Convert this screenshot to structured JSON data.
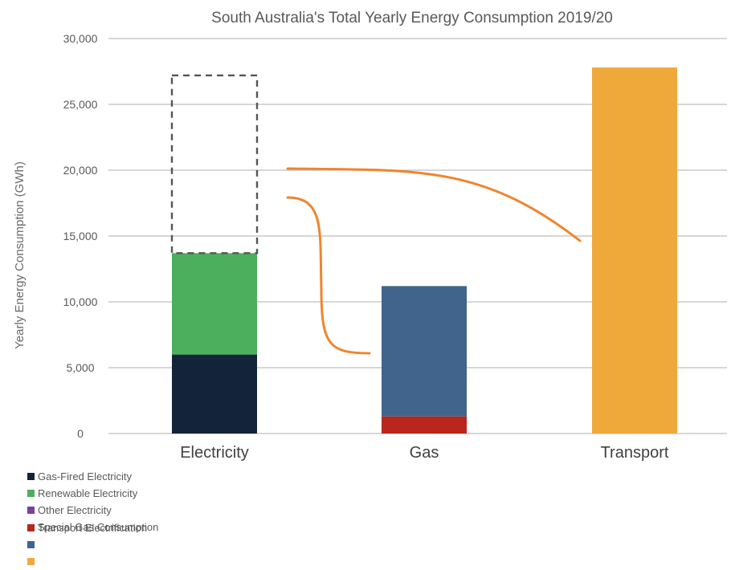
{
  "colors": {
    "gas_fired": "#13243a",
    "renewable": "#4caf5e",
    "other": "#7a3fa0",
    "special_gas": "#b8261c",
    "gas": "#41648c",
    "transport": "#efa93a",
    "annotation": "#f0852d",
    "grid": "#bfbfbf",
    "dashed": "#555555"
  },
  "chart_data": {
    "type": "bar",
    "title": "South Australia's Total Yearly Energy Consumption 2019/20",
    "ylabel": "Yearly Energy Consumption (GWh)",
    "xlabel": "",
    "ylim": [
      0,
      30000
    ],
    "yticks": [
      0,
      5000,
      10000,
      15000,
      20000,
      25000,
      30000
    ],
    "ytick_labels": [
      "0",
      "5,000",
      "10,000",
      "15,000",
      "20,000",
      "25,000",
      "30,000"
    ],
    "grid": true,
    "stacked": true,
    "categories": [
      "Electricity",
      "Gas",
      "Transport"
    ],
    "series": [
      {
        "name": "Gas-Fired Electricity",
        "color_key": "gas_fired",
        "values": [
          6000,
          0,
          0
        ]
      },
      {
        "name": "Renewable Electricity",
        "color_key": "renewable",
        "values": [
          7700,
          0,
          0
        ]
      },
      {
        "name": "Other Electricity",
        "color_key": "other",
        "values": [
          0,
          0,
          0
        ]
      },
      {
        "name": "Special Gas Consumption",
        "color_key": "special_gas",
        "values": [
          0,
          1300,
          0
        ]
      },
      {
        "name": "",
        "color_key": "gas",
        "values": [
          0,
          9900,
          0
        ]
      },
      {
        "name": "",
        "color_key": "transport",
        "values": [
          0,
          0,
          27800
        ]
      }
    ],
    "dashed_outline": {
      "category": "Electricity",
      "from": 13700,
      "to": 27200
    },
    "legend_overlap_text": "Transport Electrification",
    "legend_position": "bottom-left"
  }
}
